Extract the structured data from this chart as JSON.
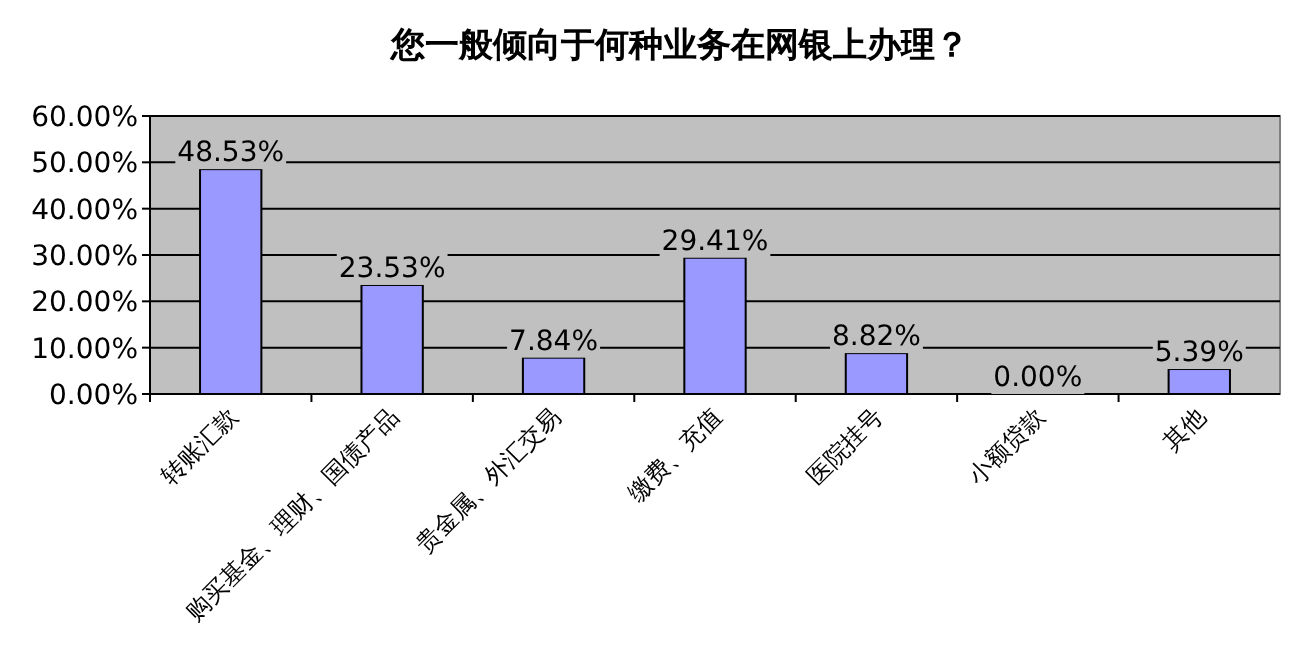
{
  "chart_data": {
    "type": "bar",
    "title": "您一般倾向于何种业务在网银上办理？",
    "categories": [
      "转账汇款",
      "购买基金、理财、国债产品",
      "贵金属、外汇交易",
      "缴费、充值",
      "医院挂号",
      "小额贷款",
      "其他"
    ],
    "values": [
      48.53,
      23.53,
      7.84,
      29.41,
      8.82,
      0.0,
      5.39
    ],
    "value_labels": [
      "48.53%",
      "23.53%",
      "7.84%",
      "29.41%",
      "8.82%",
      "0.00%",
      "5.39%"
    ],
    "color": "#9999ff",
    "ylim": [
      0,
      60
    ],
    "yticks": [
      {
        "value": 0,
        "label": "0.00%"
      },
      {
        "value": 10,
        "label": "10.00%"
      },
      {
        "value": 20,
        "label": "20.00%"
      },
      {
        "value": 30,
        "label": "30.00%"
      },
      {
        "value": 40,
        "label": "40.00%"
      },
      {
        "value": 50,
        "label": "50.00%"
      },
      {
        "value": 60,
        "label": "60.00%"
      }
    ],
    "grid": "y"
  }
}
